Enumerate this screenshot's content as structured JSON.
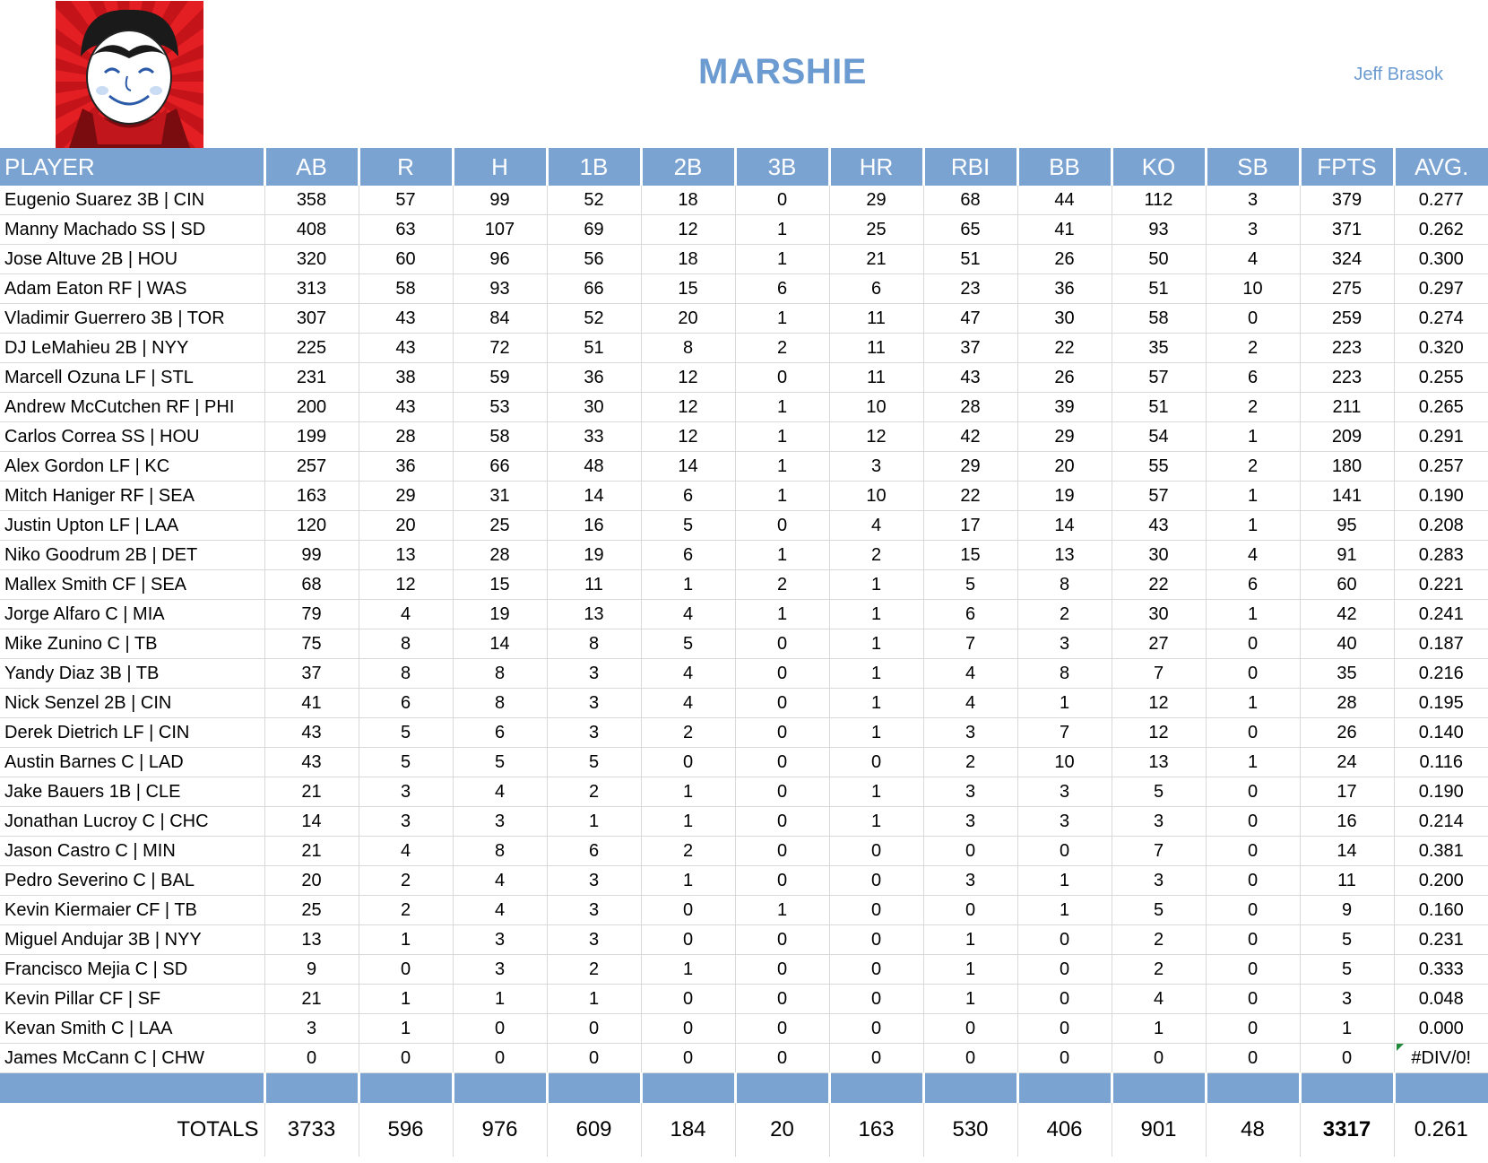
{
  "header": {
    "title": "MARSHIE",
    "owner": "Jeff Brasok",
    "logo_icon": "cartoon-face-logo-icon"
  },
  "table": {
    "columns": [
      "PLAYER",
      "AB",
      "R",
      "H",
      "1B",
      "2B",
      "3B",
      "HR",
      "RBI",
      "BB",
      "KO",
      "SB",
      "FPTS",
      "AVG."
    ],
    "rows": [
      [
        "Eugenio Suarez 3B | CIN",
        "358",
        "57",
        "99",
        "52",
        "18",
        "0",
        "29",
        "68",
        "44",
        "112",
        "3",
        "379",
        "0.277"
      ],
      [
        "Manny Machado SS | SD",
        "408",
        "63",
        "107",
        "69",
        "12",
        "1",
        "25",
        "65",
        "41",
        "93",
        "3",
        "371",
        "0.262"
      ],
      [
        "Jose Altuve 2B | HOU",
        "320",
        "60",
        "96",
        "56",
        "18",
        "1",
        "21",
        "51",
        "26",
        "50",
        "4",
        "324",
        "0.300"
      ],
      [
        "Adam Eaton RF | WAS",
        "313",
        "58",
        "93",
        "66",
        "15",
        "6",
        "6",
        "23",
        "36",
        "51",
        "10",
        "275",
        "0.297"
      ],
      [
        "Vladimir Guerrero 3B | TOR",
        "307",
        "43",
        "84",
        "52",
        "20",
        "1",
        "11",
        "47",
        "30",
        "58",
        "0",
        "259",
        "0.274"
      ],
      [
        "DJ LeMahieu 2B | NYY",
        "225",
        "43",
        "72",
        "51",
        "8",
        "2",
        "11",
        "37",
        "22",
        "35",
        "2",
        "223",
        "0.320"
      ],
      [
        "Marcell Ozuna LF | STL",
        "231",
        "38",
        "59",
        "36",
        "12",
        "0",
        "11",
        "43",
        "26",
        "57",
        "6",
        "223",
        "0.255"
      ],
      [
        "Andrew McCutchen RF | PHI",
        "200",
        "43",
        "53",
        "30",
        "12",
        "1",
        "10",
        "28",
        "39",
        "51",
        "2",
        "211",
        "0.265"
      ],
      [
        "Carlos Correa SS | HOU",
        "199",
        "28",
        "58",
        "33",
        "12",
        "1",
        "12",
        "42",
        "29",
        "54",
        "1",
        "209",
        "0.291"
      ],
      [
        "Alex Gordon LF | KC",
        "257",
        "36",
        "66",
        "48",
        "14",
        "1",
        "3",
        "29",
        "20",
        "55",
        "2",
        "180",
        "0.257"
      ],
      [
        "Mitch Haniger RF | SEA",
        "163",
        "29",
        "31",
        "14",
        "6",
        "1",
        "10",
        "22",
        "19",
        "57",
        "1",
        "141",
        "0.190"
      ],
      [
        "Justin Upton LF | LAA",
        "120",
        "20",
        "25",
        "16",
        "5",
        "0",
        "4",
        "17",
        "14",
        "43",
        "1",
        "95",
        "0.208"
      ],
      [
        "Niko Goodrum 2B | DET",
        "99",
        "13",
        "28",
        "19",
        "6",
        "1",
        "2",
        "15",
        "13",
        "30",
        "4",
        "91",
        "0.283"
      ],
      [
        "Mallex Smith CF | SEA",
        "68",
        "12",
        "15",
        "11",
        "1",
        "2",
        "1",
        "5",
        "8",
        "22",
        "6",
        "60",
        "0.221"
      ],
      [
        "Jorge Alfaro C | MIA",
        "79",
        "4",
        "19",
        "13",
        "4",
        "1",
        "1",
        "6",
        "2",
        "30",
        "1",
        "42",
        "0.241"
      ],
      [
        "Mike Zunino C | TB",
        "75",
        "8",
        "14",
        "8",
        "5",
        "0",
        "1",
        "7",
        "3",
        "27",
        "0",
        "40",
        "0.187"
      ],
      [
        "Yandy Diaz 3B | TB",
        "37",
        "8",
        "8",
        "3",
        "4",
        "0",
        "1",
        "4",
        "8",
        "7",
        "0",
        "35",
        "0.216"
      ],
      [
        "Nick Senzel 2B | CIN",
        "41",
        "6",
        "8",
        "3",
        "4",
        "0",
        "1",
        "4",
        "1",
        "12",
        "1",
        "28",
        "0.195"
      ],
      [
        "Derek Dietrich LF | CIN",
        "43",
        "5",
        "6",
        "3",
        "2",
        "0",
        "1",
        "3",
        "7",
        "12",
        "0",
        "26",
        "0.140"
      ],
      [
        "Austin Barnes C | LAD",
        "43",
        "5",
        "5",
        "5",
        "0",
        "0",
        "0",
        "2",
        "10",
        "13",
        "1",
        "24",
        "0.116"
      ],
      [
        "Jake Bauers 1B | CLE",
        "21",
        "3",
        "4",
        "2",
        "1",
        "0",
        "1",
        "3",
        "3",
        "5",
        "0",
        "17",
        "0.190"
      ],
      [
        "Jonathan Lucroy C | CHC",
        "14",
        "3",
        "3",
        "1",
        "1",
        "0",
        "1",
        "3",
        "3",
        "3",
        "0",
        "16",
        "0.214"
      ],
      [
        "Jason Castro C | MIN",
        "21",
        "4",
        "8",
        "6",
        "2",
        "0",
        "0",
        "0",
        "0",
        "7",
        "0",
        "14",
        "0.381"
      ],
      [
        "Pedro Severino C | BAL",
        "20",
        "2",
        "4",
        "3",
        "1",
        "0",
        "0",
        "3",
        "1",
        "3",
        "0",
        "11",
        "0.200"
      ],
      [
        "Kevin Kiermaier CF | TB",
        "25",
        "2",
        "4",
        "3",
        "0",
        "1",
        "0",
        "0",
        "1",
        "5",
        "0",
        "9",
        "0.160"
      ],
      [
        "Miguel Andujar 3B | NYY",
        "13",
        "1",
        "3",
        "3",
        "0",
        "0",
        "0",
        "1",
        "0",
        "2",
        "0",
        "5",
        "0.231"
      ],
      [
        "Francisco Mejia C | SD",
        "9",
        "0",
        "3",
        "2",
        "1",
        "0",
        "0",
        "1",
        "0",
        "2",
        "0",
        "5",
        "0.333"
      ],
      [
        "Kevin Pillar CF | SF",
        "21",
        "1",
        "1",
        "1",
        "0",
        "0",
        "0",
        "1",
        "0",
        "4",
        "0",
        "3",
        "0.048"
      ],
      [
        "Kevan Smith C | LAA",
        "3",
        "1",
        "0",
        "0",
        "0",
        "0",
        "0",
        "0",
        "0",
        "1",
        "0",
        "1",
        "0.000"
      ],
      [
        "James McCann C | CHW",
        "0",
        "0",
        "0",
        "0",
        "0",
        "0",
        "0",
        "0",
        "0",
        "0",
        "0",
        "0",
        "#DIV/0!"
      ]
    ],
    "totals": [
      "TOTALS",
      "3733",
      "596",
      "976",
      "609",
      "184",
      "20",
      "163",
      "530",
      "406",
      "901",
      "48",
      "3317",
      "0.261"
    ]
  },
  "colors": {
    "header_blue": "#7ba3d2",
    "title_blue": "#6b9bd0",
    "logo_red": "#e41f23"
  }
}
